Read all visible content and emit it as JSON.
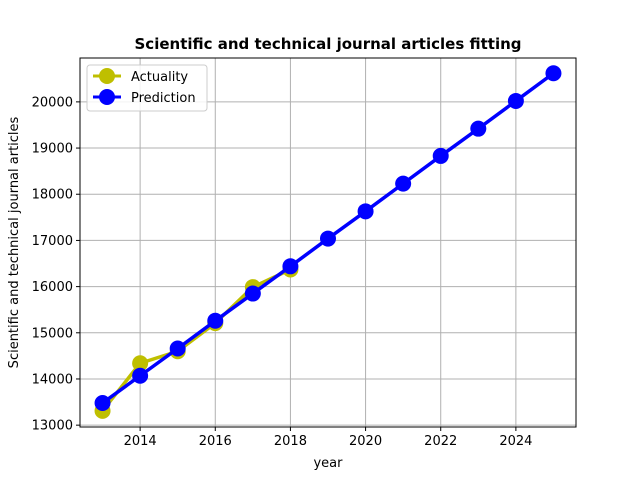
{
  "chart_data": {
    "type": "line",
    "title": "Scientific and technical journal articles fitting",
    "xlabel": "year",
    "ylabel": "Scientific and technical journal articles",
    "xlim": [
      2012.4,
      2025.6
    ],
    "ylim": [
      12960,
      20950
    ],
    "xticks": [
      2014,
      2016,
      2018,
      2020,
      2022,
      2024
    ],
    "yticks": [
      13000,
      14000,
      15000,
      16000,
      17000,
      18000,
      19000,
      20000
    ],
    "grid": true,
    "legend_position": "top-left",
    "series": [
      {
        "name": "Actuality",
        "color": "#bfbf00",
        "x": [
          2013,
          2014,
          2015,
          2016,
          2017,
          2018
        ],
        "y": [
          13310,
          14340,
          14600,
          15210,
          15990,
          16370
        ]
      },
      {
        "name": "Prediction",
        "color": "#0000ff",
        "x": [
          2013,
          2014,
          2015,
          2016,
          2017,
          2018,
          2019,
          2020,
          2021,
          2022,
          2023,
          2024,
          2025
        ],
        "y": [
          13480,
          14070,
          14660,
          15260,
          15850,
          16440,
          17040,
          17630,
          18230,
          18830,
          19420,
          20020,
          20620
        ]
      }
    ]
  }
}
